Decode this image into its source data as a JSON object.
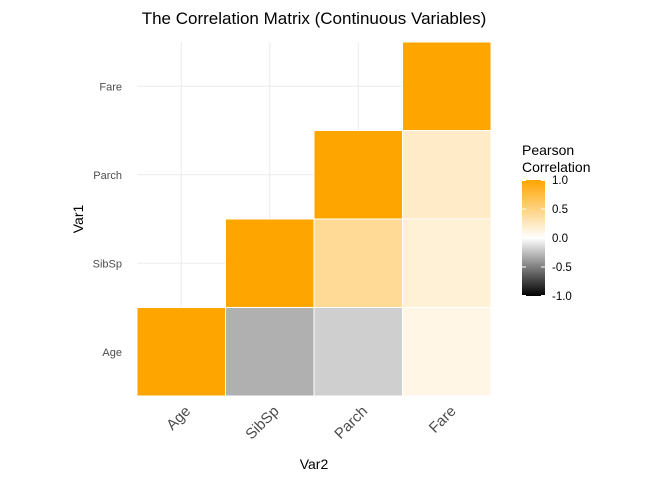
{
  "chart_data": {
    "type": "heatmap",
    "title": "The Correlation Matrix (Continuous Variables)",
    "xlabel": "Var2",
    "ylabel": "Var1",
    "x_categories": [
      "Age",
      "SibSp",
      "Parch",
      "Fare"
    ],
    "y_categories": [
      "Age",
      "SibSp",
      "Parch",
      "Fare"
    ],
    "cells": [
      {
        "x": "Age",
        "y": "Age",
        "value": 1.0
      },
      {
        "x": "SibSp",
        "y": "Age",
        "value": -0.31
      },
      {
        "x": "Parch",
        "y": "Age",
        "value": -0.19
      },
      {
        "x": "Fare",
        "y": "Age",
        "value": 0.1
      },
      {
        "x": "SibSp",
        "y": "SibSp",
        "value": 1.0
      },
      {
        "x": "Parch",
        "y": "SibSp",
        "value": 0.41
      },
      {
        "x": "Fare",
        "y": "SibSp",
        "value": 0.16
      },
      {
        "x": "Parch",
        "y": "Parch",
        "value": 1.0
      },
      {
        "x": "Fare",
        "y": "Parch",
        "value": 0.22
      },
      {
        "x": "Fare",
        "y": "Fare",
        "value": 1.0
      }
    ],
    "legend": {
      "title_lines": [
        "Pearson",
        "Correlation"
      ],
      "ticks": [
        1.0,
        0.5,
        0.0,
        -0.5,
        -1.0
      ],
      "tick_labels": [
        "1.0",
        "0.5",
        "0.0",
        "-0.5",
        "-1.0"
      ],
      "limits": [
        -1,
        1
      ],
      "low_color": "#000000",
      "mid_color": "#ffffff",
      "high_color": "#ffa500",
      "placement": "right"
    },
    "grid": true,
    "cell_border_color": "#ffffff"
  }
}
